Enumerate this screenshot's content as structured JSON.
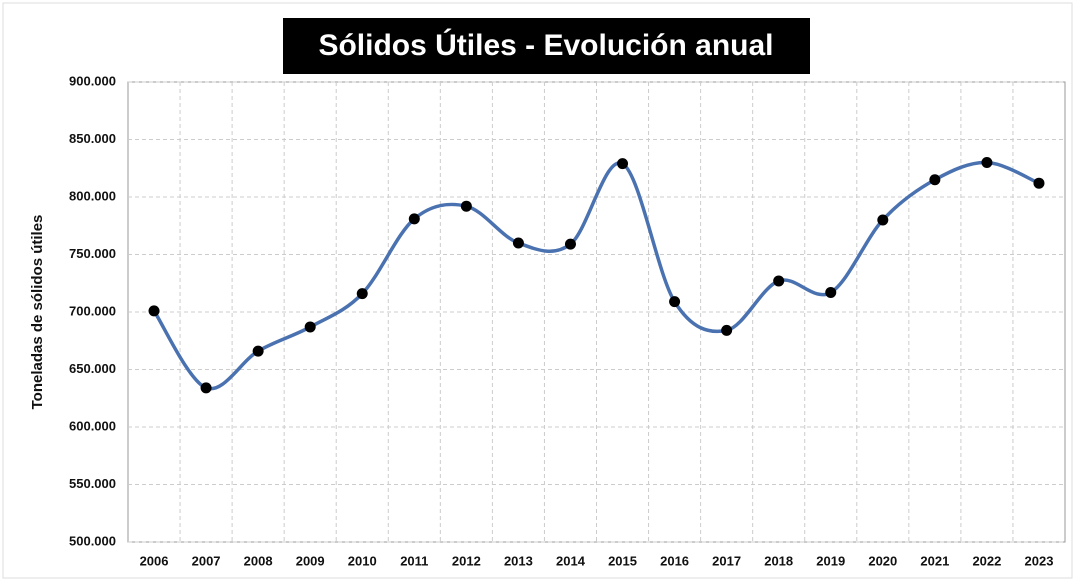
{
  "chart_data": {
    "type": "line",
    "title": "Sólidos Útiles - Evolución anual",
    "y_label": "Toneladas de sólidos útiles",
    "categories": [
      "2006",
      "2007",
      "2008",
      "2009",
      "2010",
      "2011",
      "2012",
      "2013",
      "2014",
      "2015",
      "2016",
      "2017",
      "2018",
      "2019",
      "2020",
      "2021",
      "2022",
      "2023"
    ],
    "series": [
      {
        "name": "Toneladas de sólidos útiles",
        "color": "#4a72b0",
        "values": [
          701000,
          634000,
          666000,
          687000,
          716000,
          781000,
          792000,
          760000,
          759000,
          829000,
          709000,
          684000,
          727000,
          717000,
          780000,
          815000,
          830000,
          812000
        ]
      }
    ],
    "marker_color": "#000000",
    "ylim": [
      500000,
      900000
    ],
    "yticks": [
      {
        "value": 500000,
        "label": "500.000"
      },
      {
        "value": 550000,
        "label": "550.000"
      },
      {
        "value": 600000,
        "label": "600.000"
      },
      {
        "value": 650000,
        "label": "650.000"
      },
      {
        "value": 700000,
        "label": "700.000"
      },
      {
        "value": 750000,
        "label": "750.000"
      },
      {
        "value": 800000,
        "label": "800.000"
      },
      {
        "value": 850000,
        "label": "850.000"
      },
      {
        "value": 900000,
        "label": "900.000"
      }
    ],
    "grid": true
  }
}
